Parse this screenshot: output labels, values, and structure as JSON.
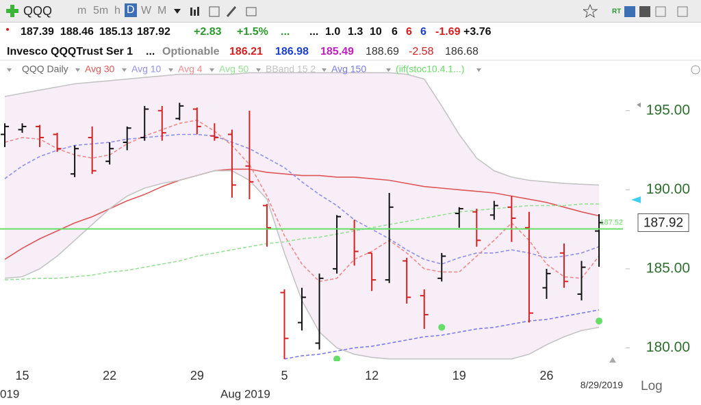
{
  "header": {
    "symbol": "QQQ",
    "timeframes": [
      "m",
      "5m",
      "h",
      "D",
      "W",
      "M"
    ],
    "quote": [
      "+2.83",
      "+1.5%",
      "...",
      "...",
      "1.0",
      "1.3",
      "10",
      "6",
      "6",
      "6",
      "-1.69",
      "+3.76"
    ],
    "info": [
      "Invesco QQQTrust Ser 1",
      "...",
      "Optionable",
      "186.21",
      "186.98",
      "185.49",
      "188.69",
      "-2.58",
      "186.68"
    ]
  },
  "chart_data": {
    "type": "ohlc",
    "legend_title": "QQQ Daily",
    "categories": [
      null,
      "15",
      null,
      null,
      null,
      null,
      "22",
      null,
      null,
      null,
      null,
      "29",
      null,
      null,
      null,
      null,
      "5",
      null,
      null,
      null,
      null,
      "12",
      null,
      null,
      null,
      null,
      "19",
      null,
      null,
      null,
      null,
      "26",
      null,
      null,
      null
    ],
    "open": [
      193.5,
      193.8,
      194.0,
      193.5,
      191.0,
      193.3,
      191.8,
      193.0,
      193.3,
      195.0,
      194.5,
      195.1,
      193.4,
      193.5,
      191.5,
      189.0,
      183.5,
      181.6,
      180.3,
      185.0,
      187.5,
      186.0,
      184.3,
      185.5,
      183.3,
      184.4,
      188.5,
      188.6,
      188.4,
      188.9,
      187.6,
      183.8,
      186.0,
      183.4,
      187.39
    ],
    "high": [
      194.2,
      194.2,
      194.1,
      193.6,
      192.8,
      194.0,
      193.0,
      194.0,
      195.3,
      195.3,
      195.5,
      195.2,
      194.2,
      193.8,
      195.0,
      189.1,
      183.7,
      183.8,
      184.7,
      188.4,
      188.1,
      186.0,
      189.8,
      185.7,
      183.7,
      186.0,
      188.9,
      188.8,
      189.3,
      189.6,
      188.6,
      185.0,
      186.6,
      185.5,
      188.46
    ],
    "low": [
      192.7,
      193.6,
      192.7,
      192.4,
      190.8,
      191.0,
      191.6,
      192.5,
      193.1,
      193.1,
      194.4,
      193.5,
      193.1,
      189.5,
      189.4,
      186.4,
      179.3,
      181.1,
      179.9,
      184.7,
      185.2,
      183.6,
      184.1,
      182.8,
      181.2,
      184.2,
      187.6,
      186.4,
      188.1,
      186.7,
      181.6,
      183.1,
      183.8,
      183.0,
      185.13
    ],
    "close": [
      194.0,
      194.0,
      193.3,
      192.6,
      192.6,
      191.2,
      192.6,
      193.9,
      195.1,
      193.6,
      195.3,
      194.0,
      193.3,
      190.3,
      190.5,
      187.6,
      180.6,
      183.2,
      184.4,
      188.3,
      186.1,
      184.3,
      188.9,
      183.2,
      182.1,
      185.8,
      188.8,
      186.8,
      189.0,
      188.2,
      182.2,
      184.7,
      184.2,
      185.1,
      187.92
    ],
    "bar_colors": [
      "#111111",
      "#111111",
      "#d62020",
      "#d62020",
      "#111111",
      "#d62020",
      "#111111",
      "#111111",
      "#111111",
      "#d62020",
      "#111111",
      "#d62020",
      "#d62020",
      "#d62020",
      "#d62020",
      "#d62020",
      "#d62020",
      "#111111",
      "#111111",
      "#111111",
      "#d62020",
      "#d62020",
      "#111111",
      "#d62020",
      "#d62020",
      "#111111",
      "#111111",
      "#d62020",
      "#111111",
      "#d62020",
      "#d62020",
      "#111111",
      "#d62020",
      "#111111",
      "#111111"
    ],
    "series": [
      {
        "name": "Avg 30",
        "color": "#e05555",
        "style": "solid",
        "values": [
          185.6,
          186.3,
          186.9,
          187.4,
          187.9,
          188.3,
          188.8,
          189.3,
          189.7,
          190.2,
          190.6,
          190.9,
          191.2,
          191.3,
          191.3,
          191.1,
          191.0,
          190.9,
          190.9,
          190.8,
          190.8,
          190.7,
          190.6,
          190.4,
          190.2,
          190.1,
          190.0,
          189.9,
          189.8,
          189.6,
          189.4,
          189.2,
          188.9,
          188.6,
          188.35
        ]
      },
      {
        "name": "Avg 10",
        "color": "#8f8fec",
        "style": "dashed",
        "values": [
          190.7,
          191.5,
          192.1,
          192.5,
          192.8,
          192.9,
          193.0,
          193.2,
          193.3,
          193.4,
          193.5,
          193.5,
          193.4,
          193.0,
          192.6,
          192.0,
          191.4,
          190.5,
          189.7,
          189.0,
          188.1,
          187.5,
          186.9,
          186.2,
          185.6,
          185.3,
          185.7,
          186.0,
          186.0,
          186.2,
          186.0,
          185.7,
          185.8,
          186.0,
          186.4
        ]
      },
      {
        "name": "Avg 4",
        "color": "#f08a8a",
        "style": "dashed",
        "values": [
          193.0,
          193.3,
          193.2,
          192.6,
          192.2,
          192.0,
          192.2,
          192.9,
          193.4,
          193.8,
          194.2,
          194.4,
          193.7,
          192.8,
          191.6,
          189.6,
          187.1,
          185.3,
          184.2,
          184.4,
          185.6,
          186.1,
          186.8,
          186.0,
          185.0,
          184.8,
          184.8,
          185.8,
          186.8,
          187.9,
          186.8,
          185.3,
          184.5,
          184.4,
          185.8
        ]
      },
      {
        "name": "Avg 50",
        "color": "#95e095",
        "style": "dashed",
        "values": [
          184.3,
          184.35,
          184.4,
          184.4,
          184.5,
          184.6,
          184.8,
          184.9,
          185.1,
          185.3,
          185.5,
          185.8,
          186.0,
          186.2,
          186.4,
          186.6,
          186.7,
          186.9,
          187.0,
          187.2,
          187.4,
          187.6,
          187.8,
          188.0,
          188.2,
          188.4,
          188.6,
          188.7,
          188.8,
          188.9,
          189.0,
          189.0,
          189.0,
          189.1,
          189.1
        ]
      },
      {
        "name": "BBand 15 2",
        "color": "#c4c4c4",
        "style": "band",
        "upper": [
          195.9,
          196.1,
          196.3,
          196.5,
          196.7,
          196.8,
          196.9,
          197.0,
          197.1,
          197.2,
          197.3,
          197.3,
          197.3,
          197.3,
          197.4,
          197.4,
          197.4,
          197.4,
          197.4,
          197.4,
          197.4,
          197.4,
          197.4,
          197.3,
          197.0,
          195.3,
          193.5,
          192.0,
          191.2,
          190.8,
          190.6,
          190.5,
          190.4,
          190.35,
          190.3
        ],
        "lower": [
          184.4,
          184.5,
          185.0,
          185.8,
          186.8,
          187.8,
          188.8,
          189.6,
          190.1,
          190.4,
          190.6,
          190.9,
          191.2,
          191.2,
          190.6,
          189.4,
          186.0,
          183.0,
          181.0,
          180.0,
          179.6,
          179.4,
          179.3,
          179.3,
          179.3,
          179.3,
          179.3,
          179.3,
          179.3,
          179.3,
          179.6,
          180.2,
          180.7,
          181.1,
          181.3
        ]
      },
      {
        "name": "Avg 150",
        "color": "#7b7bec",
        "style": "dashed",
        "values": [
          null,
          null,
          null,
          null,
          null,
          null,
          null,
          null,
          null,
          null,
          null,
          null,
          null,
          null,
          null,
          null,
          179.3,
          179.5,
          179.6,
          179.8,
          180.0,
          180.1,
          180.3,
          180.5,
          180.7,
          180.8,
          181.0,
          181.2,
          181.3,
          181.5,
          181.7,
          181.8,
          182.0,
          182.2,
          182.4
        ]
      },
      {
        "name": "(iif(stoc10.4.1...)",
        "color": "#66dd66",
        "style": "dots",
        "values": [
          null,
          null,
          null,
          null,
          null,
          null,
          null,
          null,
          null,
          null,
          null,
          null,
          null,
          null,
          null,
          null,
          null,
          null,
          null,
          179.3,
          null,
          null,
          null,
          null,
          null,
          181.3,
          null,
          null,
          null,
          null,
          null,
          null,
          null,
          null,
          181.7
        ]
      }
    ],
    "hline": {
      "value": 187.52,
      "color": "#66dd66"
    },
    "ylim": [
      179.2,
      197.5
    ],
    "yticks": [
      {
        "value": 195,
        "label": "195.00"
      },
      {
        "value": 190,
        "label": "190.00"
      },
      {
        "value": 185,
        "label": "185.00"
      },
      {
        "value": 180,
        "label": "180.00"
      }
    ],
    "year_label": "019",
    "month_label": "Aug 2019",
    "date_label": "8/29/2019",
    "scale_label": "Log"
  }
}
